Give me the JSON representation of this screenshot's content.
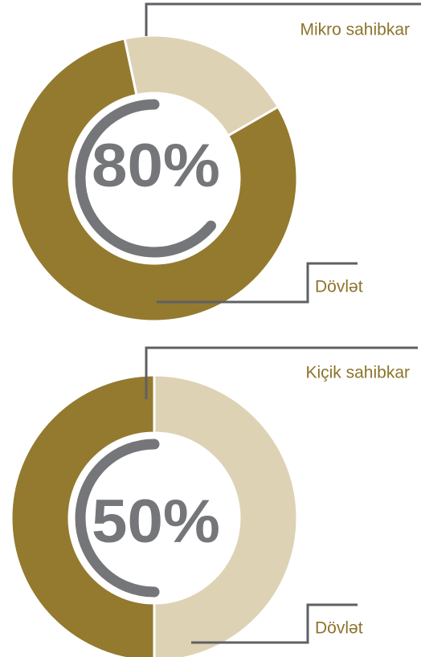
{
  "chart_data": [
    {
      "type": "pie",
      "donut": true,
      "categories": [
        "Mikro sahibkar",
        "Dövlət"
      ],
      "values": [
        20,
        80
      ],
      "colors": [
        "#ded2b5",
        "#937a2f"
      ],
      "center_label": "80%"
    },
    {
      "type": "pie",
      "donut": true,
      "categories": [
        "Kiçik sahibkar",
        "Dövlət"
      ],
      "values": [
        50,
        50
      ],
      "colors": [
        "#ded2b5",
        "#937a2f"
      ],
      "center_label": "50%"
    }
  ]
}
